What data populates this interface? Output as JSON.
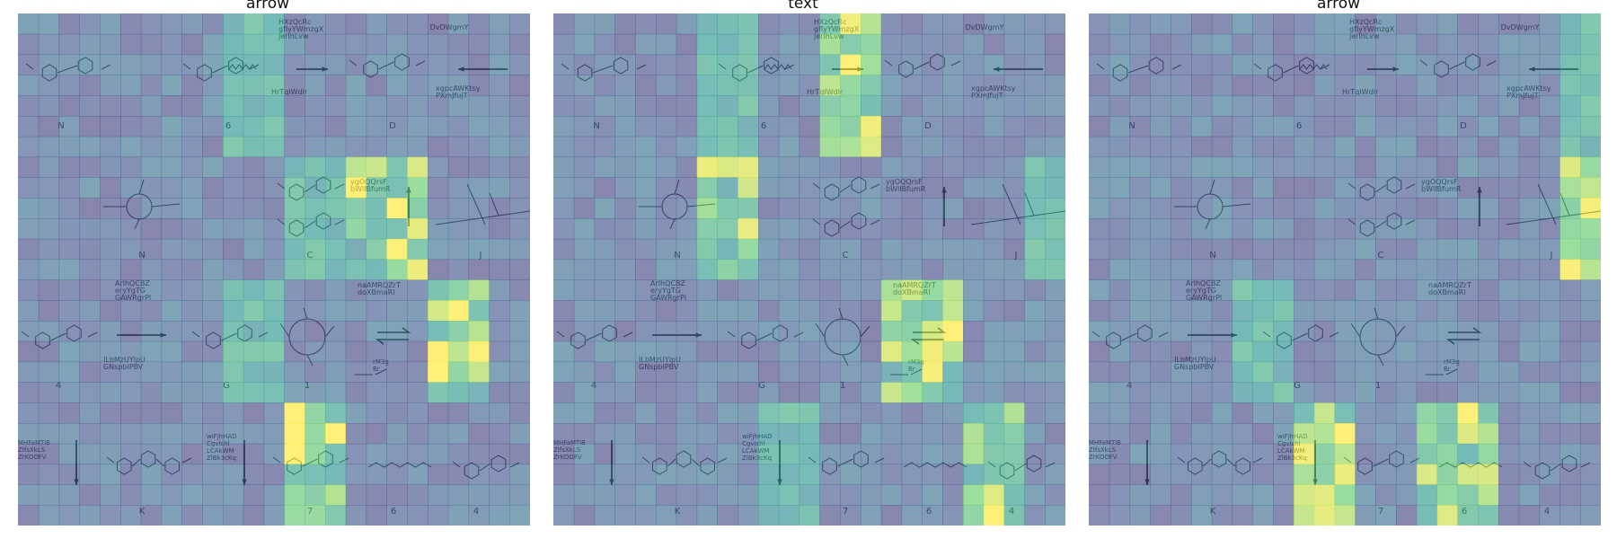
{
  "panels": [
    {
      "title": "arrow",
      "heatmap": {
        "colormap": "viridis",
        "cells": 25,
        "hot": [
          [
            1,
            5
          ],
          [
            2,
            6
          ],
          [
            3,
            4
          ],
          [
            4,
            7
          ]
        ],
        "warm": [
          [
            0,
            3
          ],
          [
            1,
            4
          ],
          [
            2,
            3
          ]
        ]
      }
    },
    {
      "title": "text",
      "heatmap": {
        "colormap": "viridis",
        "cells": 25,
        "hot": [
          [
            0,
            4
          ],
          [
            1,
            2
          ],
          [
            2,
            5
          ],
          [
            3,
            6
          ]
        ],
        "warm": [
          [
            0,
            2
          ],
          [
            1,
            7
          ],
          [
            3,
            3
          ]
        ]
      }
    },
    {
      "title": "arrow",
      "heatmap": {
        "colormap": "viridis",
        "cells": 25,
        "hot": [
          [
            3,
            3
          ],
          [
            3,
            5
          ],
          [
            1,
            7
          ]
        ],
        "warm": [
          [
            0,
            7
          ],
          [
            2,
            2
          ]
        ]
      }
    }
  ],
  "diagram": {
    "top_label_1": [
      "HXzQcRc",
      "gflyYWmzgX",
      "jerlhLvw"
    ],
    "top_label_2": "DvDWgmY",
    "mid_label_1": "HrTqIWdlr",
    "mid_label_2": [
      "xgpcAWKtsy",
      "PXmJfujT"
    ],
    "row1_letters": [
      "N",
      "6",
      "D"
    ],
    "row2_label": [
      "ygOQQrsF",
      "bWlIBfumR"
    ],
    "row2_letters": [
      "N",
      "C",
      "J"
    ],
    "row3_label_1": [
      "ArlhQCBZ",
      "eryYgTG",
      "GAWRgrPl"
    ],
    "row3_label_2": [
      "naAMRQZrT",
      "doXBmaRl"
    ],
    "row3_label_3": [
      "ILbMzUYlpU",
      "GNspbIPBV"
    ],
    "row3_label_4": [
      "rM3g",
      "Br"
    ],
    "row3_letters": [
      "4",
      "G",
      "1"
    ],
    "row4_label_1": [
      "MHFaMTiB",
      "ZIfsXkLS",
      "ZrKOOFV"
    ],
    "row4_label_2": [
      "wiFjhHAD",
      "Cgvishl",
      "LCAkWM",
      "ZlBk3cKq"
    ],
    "row4_letters": [
      "K",
      "7",
      "6",
      "4"
    ]
  }
}
